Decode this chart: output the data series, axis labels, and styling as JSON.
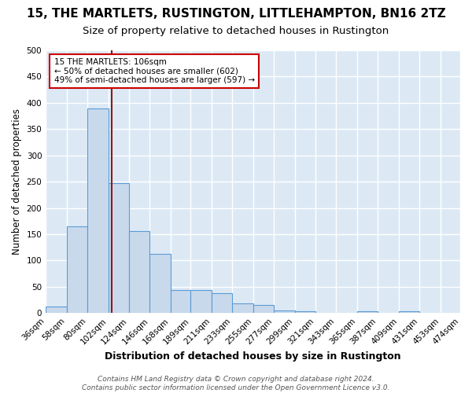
{
  "title": "15, THE MARTLETS, RUSTINGTON, LITTLEHAMPTON, BN16 2TZ",
  "subtitle": "Size of property relative to detached houses in Rustington",
  "xlabel": "Distribution of detached houses by size in Rustington",
  "ylabel": "Number of detached properties",
  "bar_color": "#c9d9ec",
  "bar_edge_color": "#5b9bd5",
  "background_color": "#dce9f5",
  "grid_color": "#ffffff",
  "bin_edges": [
    36,
    58,
    80,
    102,
    124,
    146,
    168,
    189,
    211,
    233,
    255,
    277,
    299,
    321,
    343,
    365,
    387,
    409,
    431,
    453,
    474
  ],
  "bin_counts": [
    13,
    165,
    390,
    247,
    156,
    113,
    44,
    44,
    38,
    19,
    16,
    5,
    3,
    0,
    0,
    3,
    0,
    3,
    0,
    0
  ],
  "property_size": 106,
  "vline_color": "#8b1a1a",
  "annotation_text": "15 THE MARTLETS: 106sqm\n← 50% of detached houses are smaller (602)\n49% of semi-detached houses are larger (597) →",
  "annotation_box_color": "#ffffff",
  "annotation_box_edge_color": "#cc0000",
  "ylim": [
    0,
    500
  ],
  "yticks": [
    0,
    50,
    100,
    150,
    200,
    250,
    300,
    350,
    400,
    450,
    500
  ],
  "footer_text": "Contains HM Land Registry data © Crown copyright and database right 2024.\nContains public sector information licensed under the Open Government Licence v3.0.",
  "title_fontsize": 11,
  "subtitle_fontsize": 9.5,
  "xlabel_fontsize": 9,
  "ylabel_fontsize": 8.5,
  "tick_fontsize": 7.5,
  "annotation_fontsize": 7.5,
  "footer_fontsize": 6.5
}
